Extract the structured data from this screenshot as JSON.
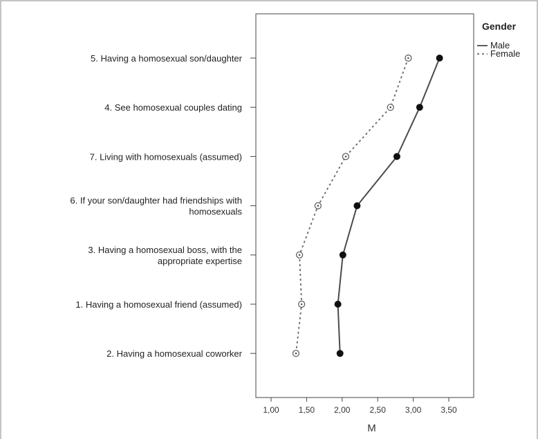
{
  "chart_data": {
    "type": "line",
    "orientation": "horizontal",
    "xlabel": "M",
    "xlim": [
      0.9,
      3.6
    ],
    "x_ticks": [
      1.0,
      1.5,
      2.0,
      2.5,
      3.0,
      3.5
    ],
    "x_tick_labels": [
      "1,00",
      "1,50",
      "2,00",
      "2,50",
      "3,00",
      "3,50"
    ],
    "categories": [
      [
        "5. Having a homosexual son/daughter"
      ],
      [
        "4. See homosexual couples dating"
      ],
      [
        "7. Living with homosexuals (assumed)"
      ],
      [
        "6. If your son/daughter had friendships with",
        "homosexuals"
      ],
      [
        "3. Having a homosexual boss, with the",
        "appropriate expertise"
      ],
      [
        "1. Having a homosexual friend (assumed)"
      ],
      [
        "2. Having a homosexual coworker"
      ]
    ],
    "series": [
      {
        "name": "Male",
        "values": [
          3.37,
          3.09,
          2.77,
          2.21,
          2.01,
          1.94,
          1.97
        ],
        "color": "#4a4a4a",
        "style": "solid",
        "marker": "filled-circle"
      },
      {
        "name": "Female",
        "values": [
          2.93,
          2.68,
          2.05,
          1.66,
          1.4,
          1.43,
          1.35
        ],
        "color": "#666666",
        "style": "dotted",
        "marker": "open-circle"
      }
    ],
    "legend": {
      "title": "Gender",
      "position": "top-right"
    },
    "grid": false
  }
}
